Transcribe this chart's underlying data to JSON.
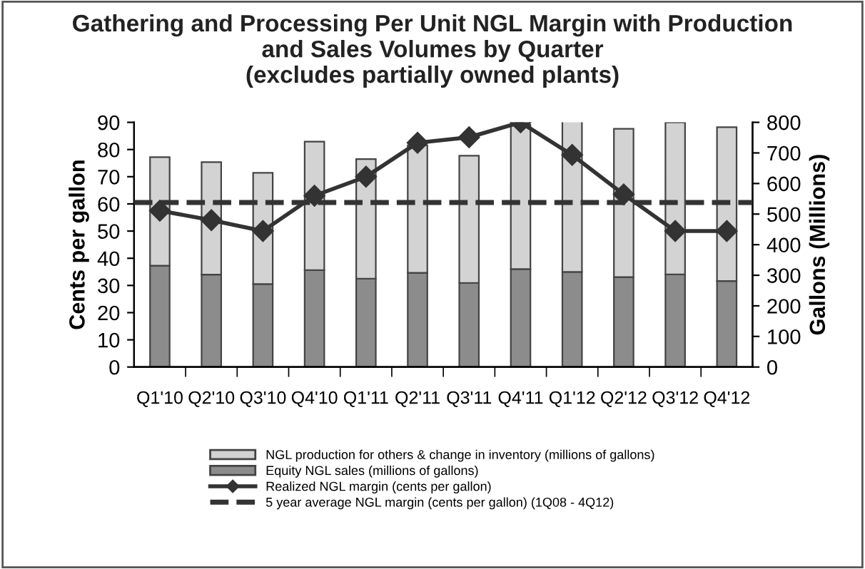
{
  "chart_data": {
    "type": "bar",
    "title": "Gathering and Processing Per Unit NGL Margin with Production\nand Sales Volumes by Quarter\n(excludes partially owned plants)",
    "ylabel": "Cents per gallon",
    "y2label": "Gallons (Millions)",
    "categories": [
      "Q1'10",
      "Q2'10",
      "Q3'10",
      "Q4'10",
      "Q1'11",
      "Q2'11",
      "Q3'11",
      "Q4'11",
      "Q1'12",
      "Q2'12",
      "Q3'12",
      "Q4'12"
    ],
    "stacked": true,
    "series": [
      {
        "name": "Equity NGL sales (millions of gallons)",
        "color": "#8c8c8c",
        "axis": "y2",
        "values": [
          331,
          302,
          271,
          317,
          289,
          308,
          275,
          320,
          311,
          294,
          303,
          281
        ]
      },
      {
        "name": "NGL production for others & change in inventory (millions of gallons)",
        "color": "#d3d3d3",
        "axis": "y2",
        "values": [
          355,
          368,
          364,
          420,
          391,
          417,
          416,
          472,
          494,
          485,
          497,
          503
        ]
      },
      {
        "name": "Realized NGL margin (cents per gallon)",
        "type": "line",
        "color": "#333333",
        "marker": "diamond",
        "line_style": "solid",
        "values": [
          57.5,
          54,
          50,
          63,
          70,
          82.5,
          84.5,
          90,
          78,
          63.5,
          50,
          50
        ]
      }
    ],
    "ref_lines": [
      {
        "axis": "y",
        "value": 60.5,
        "label": "5 year average NGL margin (cents per gallon) (1Q08 - 4Q12)",
        "color": "#333333",
        "line_style": "dashed"
      }
    ],
    "ylim": [
      0,
      90
    ],
    "yticks": [
      0,
      10,
      20,
      30,
      40,
      50,
      60,
      70,
      80,
      90
    ],
    "y2lim": [
      0,
      800
    ],
    "y2ticks": [
      0,
      100,
      200,
      300,
      400,
      500,
      600,
      700,
      800
    ],
    "grid": false,
    "legend": "bottom"
  }
}
